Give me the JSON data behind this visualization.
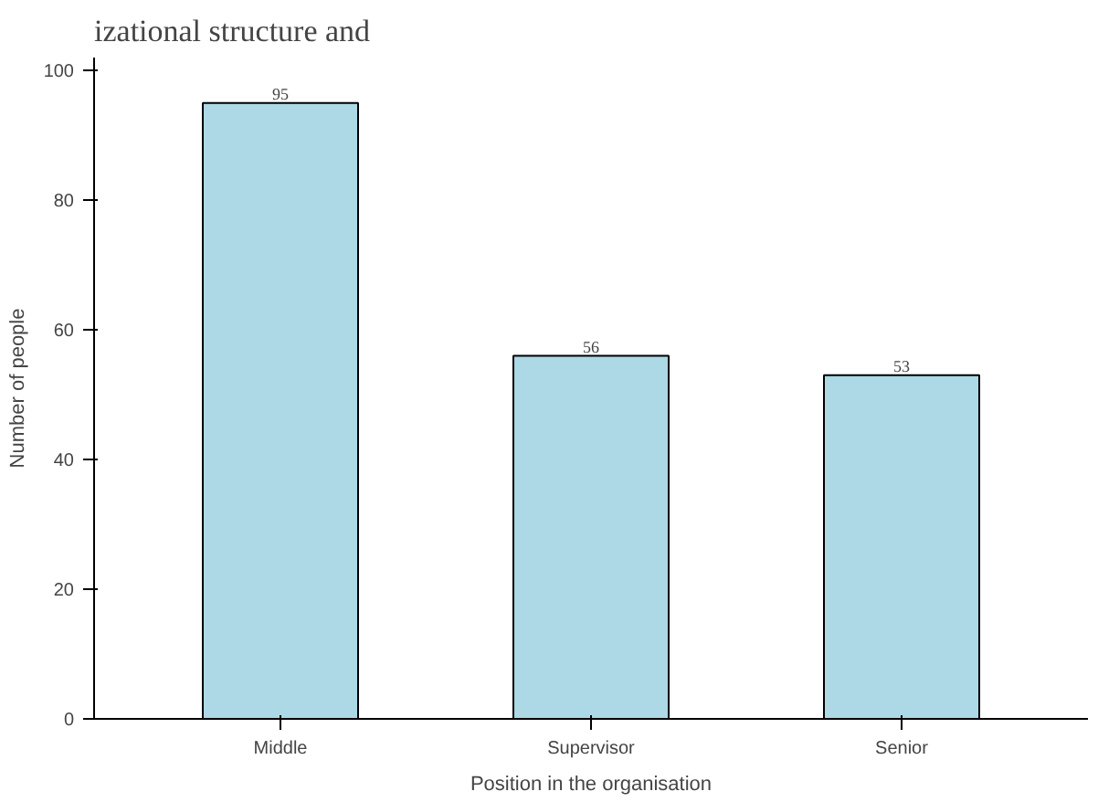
{
  "chart_data": {
    "type": "bar",
    "annotations": [
      "izational structure and"
    ],
    "xlabel": "Position in the organisation",
    "ylabel": "Number of people",
    "categories": [
      "Middle",
      "Supervisor",
      "Senior"
    ],
    "values": [
      95,
      56,
      53
    ],
    "color": "#add8e6",
    "ylim": [
      0,
      102
    ],
    "yticks": [
      0,
      20,
      40,
      60,
      80,
      100
    ],
    "data_labels": true,
    "grid": false
  }
}
